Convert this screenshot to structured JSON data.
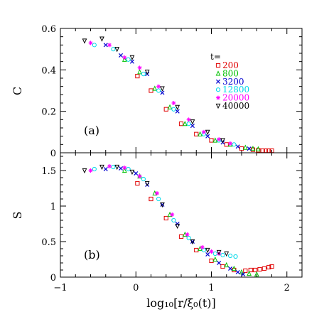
{
  "chart_data": [
    {
      "type": "scatter",
      "panel_label": "(a)",
      "ylabel": "C",
      "xlim": [
        -1,
        2.2
      ],
      "ylim": [
        0,
        0.6
      ],
      "yticks": [
        "0",
        "0.2",
        "0.4",
        "0.6"
      ],
      "legend": {
        "title": "t=",
        "placement": "top-right"
      },
      "series": [
        {
          "name": "200",
          "marker": "square",
          "color": "#e00000",
          "points": [
            [
              0.02,
              0.37
            ],
            [
              0.2,
              0.3
            ],
            [
              0.4,
              0.21
            ],
            [
              0.6,
              0.14
            ],
            [
              0.8,
              0.09
            ],
            [
              1.0,
              0.06
            ],
            [
              1.2,
              0.04
            ],
            [
              1.4,
              0.02
            ],
            [
              1.55,
              0.015
            ],
            [
              1.62,
              0.012
            ],
            [
              1.68,
              0.01
            ],
            [
              1.72,
              0.01
            ],
            [
              1.76,
              0.01
            ],
            [
              1.8,
              0.01
            ]
          ]
        },
        {
          "name": "800",
          "marker": "triangle-up",
          "color": "#00c000",
          "points": [
            [
              -0.15,
              0.45
            ],
            [
              0.05,
              0.39
            ],
            [
              0.25,
              0.31
            ],
            [
              0.45,
              0.22
            ],
            [
              0.65,
              0.14
            ],
            [
              0.85,
              0.09
            ],
            [
              1.05,
              0.06
            ],
            [
              1.25,
              0.04
            ],
            [
              1.45,
              0.025
            ],
            [
              1.55,
              0.02
            ],
            [
              1.62,
              0.018
            ]
          ]
        },
        {
          "name": "3200",
          "marker": "x",
          "color": "#0000d0",
          "points": [
            [
              -0.4,
              0.52
            ],
            [
              -0.2,
              0.47
            ],
            [
              -0.05,
              0.44
            ],
            [
              0.15,
              0.38
            ],
            [
              0.35,
              0.29
            ],
            [
              0.55,
              0.2
            ],
            [
              0.75,
              0.13
            ],
            [
              0.95,
              0.08
            ],
            [
              1.15,
              0.05
            ],
            [
              1.35,
              0.03
            ],
            [
              1.5,
              0.02
            ]
          ]
        },
        {
          "name": "12800",
          "marker": "circle",
          "color": "#00d8e8",
          "points": [
            [
              -0.55,
              0.52
            ],
            [
              -0.3,
              0.5
            ],
            [
              -0.1,
              0.45
            ],
            [
              0.1,
              0.38
            ],
            [
              0.3,
              0.3
            ],
            [
              0.5,
              0.21
            ],
            [
              0.7,
              0.14
            ],
            [
              0.9,
              0.09
            ],
            [
              1.1,
              0.06
            ],
            [
              1.3,
              0.04
            ]
          ]
        },
        {
          "name": "20000",
          "marker": "star",
          "color": "#ff00ff",
          "points": [
            [
              -0.6,
              0.53
            ],
            [
              -0.35,
              0.52
            ],
            [
              -0.15,
              0.46
            ],
            [
              0.05,
              0.41
            ],
            [
              0.3,
              0.32
            ],
            [
              0.5,
              0.24
            ],
            [
              0.7,
              0.16
            ],
            [
              0.9,
              0.1
            ],
            [
              1.1,
              0.065
            ],
            [
              1.25,
              0.045
            ]
          ]
        },
        {
          "name": "40000",
          "marker": "triangle-down",
          "color": "#000000",
          "points": [
            [
              -0.68,
              0.54
            ],
            [
              -0.45,
              0.55
            ],
            [
              -0.25,
              0.5
            ],
            [
              -0.05,
              0.46
            ],
            [
              0.15,
              0.39
            ],
            [
              0.35,
              0.31
            ],
            [
              0.55,
              0.22
            ],
            [
              0.75,
              0.15
            ],
            [
              0.95,
              0.1
            ],
            [
              1.15,
              0.06
            ]
          ]
        }
      ]
    },
    {
      "type": "scatter",
      "panel_label": "(b)",
      "ylabel": "S",
      "xlabel": "log₁₀[r/ξ₀(t)]",
      "xlim": [
        -1,
        2.2
      ],
      "ylim": [
        0,
        1.75
      ],
      "yticks": [
        "0",
        "0.5",
        "1",
        "1.5"
      ],
      "xticks": [
        "−1",
        "0",
        "1",
        "2"
      ],
      "series": [
        {
          "name": "200",
          "marker": "square",
          "color": "#e00000",
          "points": [
            [
              0.02,
              1.32
            ],
            [
              0.2,
              1.1
            ],
            [
              0.4,
              0.83
            ],
            [
              0.6,
              0.57
            ],
            [
              0.8,
              0.38
            ],
            [
              1.0,
              0.23
            ],
            [
              1.15,
              0.15
            ],
            [
              1.3,
              0.1
            ],
            [
              1.45,
              0.09
            ],
            [
              1.52,
              0.1
            ],
            [
              1.58,
              0.1
            ],
            [
              1.64,
              0.11
            ],
            [
              1.7,
              0.12
            ],
            [
              1.76,
              0.14
            ],
            [
              1.8,
              0.15
            ]
          ]
        },
        {
          "name": "800",
          "marker": "triangle-up",
          "color": "#00c000",
          "points": [
            [
              -0.15,
              1.5
            ],
            [
              0.05,
              1.42
            ],
            [
              0.25,
              1.18
            ],
            [
              0.45,
              0.88
            ],
            [
              0.65,
              0.6
            ],
            [
              0.85,
              0.4
            ],
            [
              1.05,
              0.25
            ],
            [
              1.2,
              0.17
            ],
            [
              1.3,
              0.12
            ],
            [
              1.4,
              0.07
            ],
            [
              1.5,
              0.05
            ],
            [
              1.6,
              0.04
            ]
          ]
        },
        {
          "name": "3200",
          "marker": "x",
          "color": "#0000d0",
          "points": [
            [
              -0.4,
              1.52
            ],
            [
              -0.2,
              1.53
            ],
            [
              0.0,
              1.46
            ],
            [
              0.15,
              1.3
            ],
            [
              0.35,
              1.02
            ],
            [
              0.55,
              0.75
            ],
            [
              0.75,
              0.5
            ],
            [
              0.95,
              0.32
            ],
            [
              1.1,
              0.2
            ],
            [
              1.25,
              0.12
            ],
            [
              1.35,
              0.07
            ],
            [
              1.42,
              0.04
            ]
          ]
        },
        {
          "name": "12800",
          "marker": "circle",
          "color": "#00d8e8",
          "points": [
            [
              -0.55,
              1.52
            ],
            [
              -0.3,
              1.55
            ],
            [
              -0.1,
              1.52
            ],
            [
              0.1,
              1.38
            ],
            [
              0.3,
              1.1
            ],
            [
              0.5,
              0.8
            ],
            [
              0.7,
              0.55
            ],
            [
              0.9,
              0.38
            ],
            [
              1.05,
              0.33
            ],
            [
              1.15,
              0.31
            ],
            [
              1.25,
              0.3
            ],
            [
              1.32,
              0.29
            ]
          ]
        },
        {
          "name": "20000",
          "marker": "star",
          "color": "#ff00ff",
          "points": [
            [
              -0.6,
              1.5
            ],
            [
              -0.35,
              1.56
            ],
            [
              -0.15,
              1.54
            ],
            [
              0.05,
              1.42
            ],
            [
              0.28,
              1.18
            ],
            [
              0.48,
              0.88
            ],
            [
              0.68,
              0.6
            ],
            [
              0.88,
              0.42
            ],
            [
              1.0,
              0.36
            ],
            [
              1.1,
              0.33
            ]
          ]
        },
        {
          "name": "40000",
          "marker": "triangle-down",
          "color": "#000000",
          "points": [
            [
              -0.68,
              1.5
            ],
            [
              -0.45,
              1.55
            ],
            [
              -0.25,
              1.55
            ],
            [
              -0.05,
              1.48
            ],
            [
              0.15,
              1.32
            ],
            [
              0.35,
              1.02
            ],
            [
              0.55,
              0.72
            ],
            [
              0.75,
              0.5
            ],
            [
              0.95,
              0.38
            ],
            [
              1.1,
              0.35
            ],
            [
              1.2,
              0.33
            ]
          ]
        }
      ]
    }
  ]
}
